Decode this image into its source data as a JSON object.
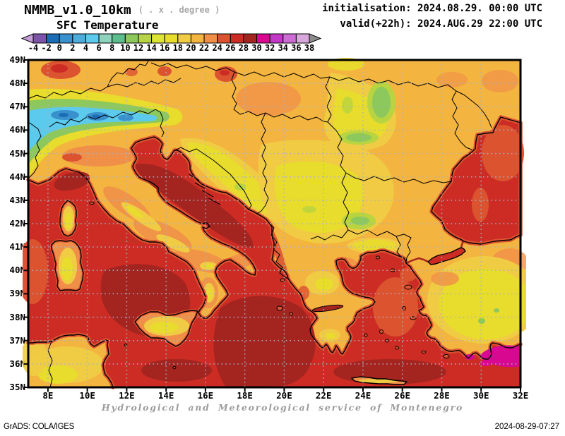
{
  "header": {
    "model_title": "NMMB_v1.0_10km",
    "model_note": "( . x . degree )",
    "field_title": "SFC Temperature",
    "init_line": "initialisation: 2024.08.29. 00:00 UTC",
    "valid_line": "valid(+22h): 2024.AUG.29 22:00 UTC"
  },
  "colorbar": {
    "tick_labels": [
      "-4",
      "-2",
      "0",
      "2",
      "4",
      "6",
      "8",
      "10",
      "12",
      "14",
      "16",
      "18",
      "20",
      "22",
      "24",
      "26",
      "28",
      "30",
      "32",
      "34",
      "36",
      "38"
    ],
    "band_colors": [
      "#7e54a8",
      "#1a6cb4",
      "#3890cc",
      "#4cacdc",
      "#5ccaec",
      "#8cd2bc",
      "#5cbe8c",
      "#8cc85c",
      "#b8d440",
      "#dce434",
      "#e8dc2c",
      "#f0cc44",
      "#f4b440",
      "#f09048",
      "#dc5330",
      "#cc2c24",
      "#a42420",
      "#d80890",
      "#c438c8",
      "#cc6cd4",
      "#d8a8dc"
    ],
    "left_arrow_color": "#c49cd8",
    "right_arrow_color": "#8c8c8c"
  },
  "axes": {
    "lat_labels": [
      "49N",
      "48N",
      "47N",
      "46N",
      "45N",
      "44N",
      "43N",
      "42N",
      "41N",
      "40N",
      "39N",
      "38N",
      "37N",
      "36N",
      "35N"
    ],
    "lon_labels": [
      "8E",
      "10E",
      "12E",
      "14E",
      "16E",
      "18E",
      "20E",
      "22E",
      "24E",
      "26E",
      "28E",
      "30E",
      "32E"
    ]
  },
  "grid": {
    "color": "#a4b4c8"
  },
  "footer": {
    "service": "Hydrological and Meteorological service of Montenegro",
    "grads_credit": "GrADS: COLA/IGES",
    "timestamp": "2024-08-29-07:27"
  }
}
